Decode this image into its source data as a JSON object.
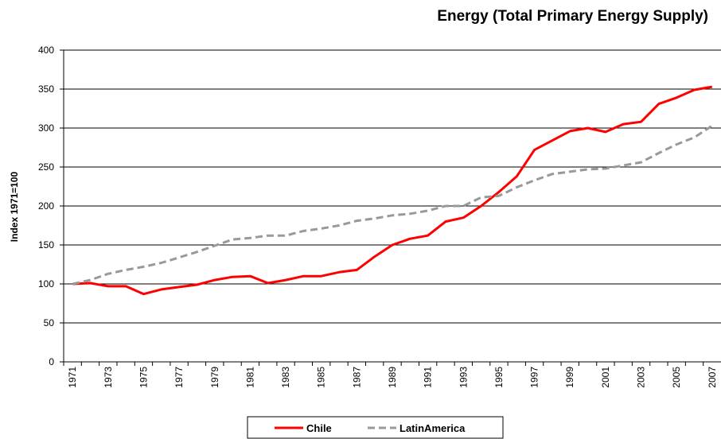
{
  "chart_data": {
    "type": "line",
    "title": "Energy (Total Primary Energy Supply)",
    "y_label": "Index 1971=100",
    "categories": [
      "1971",
      null,
      "1973",
      null,
      "1975",
      null,
      "1977",
      null,
      "1979",
      null,
      "1981",
      null,
      "1983",
      null,
      "1985",
      null,
      "1987",
      null,
      "1989",
      null,
      "1991",
      null,
      "1993",
      null,
      "1995",
      null,
      "1997",
      null,
      "1999",
      null,
      "2001",
      null,
      "2003",
      null,
      "2005",
      null,
      "2007"
    ],
    "series": [
      {
        "name": "Chile",
        "color": "#ff0000",
        "dash": false,
        "values": [
          100,
          101,
          97,
          97,
          87,
          93,
          96,
          99,
          105,
          109,
          110,
          101,
          105,
          110,
          110,
          115,
          118,
          135,
          150,
          158,
          162,
          180,
          185,
          200,
          218,
          238,
          272,
          284,
          296,
          300,
          295,
          305,
          308,
          331,
          339,
          349,
          353
        ]
      },
      {
        "name": "LatinAmerica",
        "color": "#999999",
        "dash": true,
        "values": [
          100,
          105,
          113,
          118,
          122,
          127,
          134,
          141,
          149,
          157,
          159,
          162,
          162,
          168,
          171,
          175,
          181,
          184,
          188,
          190,
          194,
          200,
          200,
          211,
          213,
          224,
          233,
          241,
          244,
          247,
          248,
          252,
          256,
          268,
          279,
          288,
          303
        ]
      }
    ],
    "ylim": [
      0,
      400
    ],
    "yticks": [
      0,
      50,
      100,
      150,
      200,
      250,
      300,
      350,
      400
    ],
    "grid": true,
    "legend": "bottom"
  }
}
